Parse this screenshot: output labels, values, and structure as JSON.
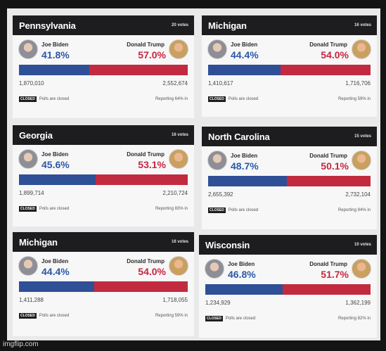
{
  "cards": [
    {
      "state": "Pennsylvania",
      "votes": "20 votes",
      "biden_name": "Joe Biden",
      "trump_name": "Donald Trump",
      "biden_pct": "41.8%",
      "trump_pct": "57.0%",
      "biden_count": "1,870,010",
      "trump_count": "2,552,674",
      "closed": "CLOSED",
      "polls": "Polls are closed",
      "reporting": "Reporting 64% in",
      "biden_share": 0.418
    },
    {
      "state": "Michigan",
      "votes": "16 votes",
      "biden_name": "Joe Biden",
      "trump_name": "Donald Trump",
      "biden_pct": "44.4%",
      "trump_pct": "54.0%",
      "biden_count": "1,410,617",
      "trump_count": "1,716,706",
      "closed": "CLOSED",
      "polls": "Polls are closed",
      "reporting": "Reporting 59% in",
      "biden_share": 0.444
    },
    {
      "state": "Georgia",
      "votes": "16 votes",
      "biden_name": "Joe Biden",
      "trump_name": "Donald Trump",
      "biden_pct": "45.6%",
      "trump_pct": "53.1%",
      "biden_count": "1,899,714",
      "trump_count": "2,210,724",
      "closed": "CLOSED",
      "polls": "Polls are closed",
      "reporting": "Reporting 83% in",
      "biden_share": 0.456
    },
    {
      "state": "North Carolina",
      "votes": "15 votes",
      "biden_name": "Joe Biden",
      "trump_name": "Donald Trump",
      "biden_pct": "48.7%",
      "trump_pct": "50.1%",
      "biden_count": "2,655,392",
      "trump_count": "2,732,104",
      "closed": "CLOSED",
      "polls": "Polls are closed",
      "reporting": "Reporting 94% in",
      "biden_share": 0.487
    },
    {
      "state": "Michigan",
      "votes": "16 votes",
      "biden_name": "Joe Biden",
      "trump_name": "Donald Trump",
      "biden_pct": "44.4%",
      "trump_pct": "54.0%",
      "biden_count": "1,411,288",
      "trump_count": "1,718,055",
      "closed": "CLOSED",
      "polls": "Polls are closed",
      "reporting": "Reporting 59% in",
      "biden_share": 0.444
    },
    {
      "state": "Wisconsin",
      "votes": "10 votes",
      "biden_name": "Joe Biden",
      "trump_name": "Donald Trump",
      "biden_pct": "46.8%",
      "trump_pct": "51.7%",
      "biden_count": "1,234,929",
      "trump_count": "1,362,199",
      "closed": "CLOSED",
      "polls": "Polls are closed",
      "reporting": "Reporting 82% in",
      "biden_share": 0.468
    }
  ],
  "watermark": "imgflip.com"
}
